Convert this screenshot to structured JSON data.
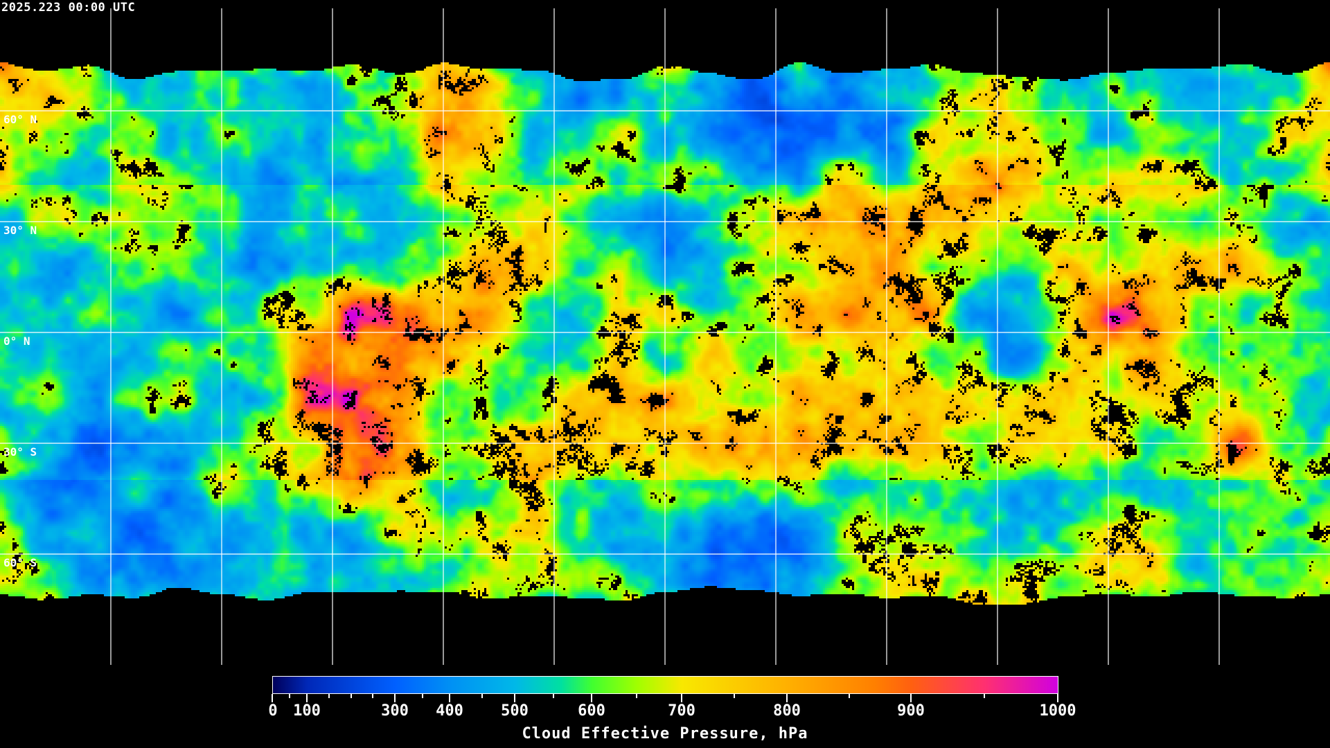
{
  "timestamp": "2025.223 00:00 UTC",
  "map": {
    "projection": "equirectangular",
    "gridline_spacing_deg": 30,
    "lat_labels": [
      "60° N",
      "30° N",
      "0° N",
      "30° S",
      "60° S"
    ],
    "lat_values": [
      60,
      30,
      0,
      -30,
      -60
    ],
    "gridline_color": "#ffffff",
    "coastline_color": "#ffffff",
    "no_data_color": "#000000"
  },
  "colorbar": {
    "title": "Cloud Effective Pressure, hPa",
    "min": 0,
    "max": 1000,
    "tick_labels": [
      "0",
      "100",
      "300",
      "400",
      "500",
      "600",
      "700",
      "800",
      "900",
      "1000"
    ],
    "tick_values": [
      0,
      100,
      300,
      400,
      500,
      600,
      700,
      800,
      900,
      1000
    ],
    "minor_tick_values": [
      50,
      150,
      200,
      250,
      350,
      450,
      550,
      650,
      750,
      850,
      950
    ],
    "colormap": [
      {
        "value": 0,
        "color": "#00005a"
      },
      {
        "value": 100,
        "color": "#0028b8"
      },
      {
        "value": 300,
        "color": "#0060ff"
      },
      {
        "value": 400,
        "color": "#0090f4"
      },
      {
        "value": 500,
        "color": "#00b8e8"
      },
      {
        "value": 560,
        "color": "#00e0a0"
      },
      {
        "value": 600,
        "color": "#40ff30"
      },
      {
        "value": 650,
        "color": "#a0ff00"
      },
      {
        "value": 700,
        "color": "#f8e800"
      },
      {
        "value": 800,
        "color": "#ffb000"
      },
      {
        "value": 870,
        "color": "#ff8000"
      },
      {
        "value": 900,
        "color": "#ff6010"
      },
      {
        "value": 950,
        "color": "#ff3070"
      },
      {
        "value": 1000,
        "color": "#d000e0"
      }
    ]
  }
}
